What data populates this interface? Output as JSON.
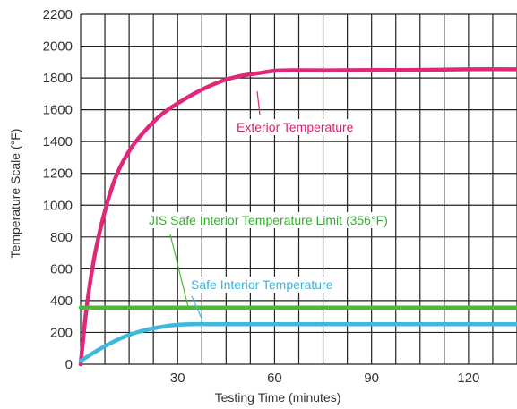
{
  "chart_data": {
    "type": "line",
    "xlabel": "Testing Time (minutes)",
    "ylabel": "Temperature Scale (°F)",
    "xlim": [
      0,
      135
    ],
    "ylim": [
      0,
      2200
    ],
    "x_ticks": [
      30,
      60,
      90,
      120
    ],
    "x_tick_labels": [
      "30",
      "60",
      "90",
      "120"
    ],
    "y_ticks": [
      0,
      200,
      400,
      600,
      800,
      1000,
      1200,
      1400,
      1600,
      1800,
      2000,
      2200
    ],
    "y_tick_labels": [
      "0",
      "200",
      "400",
      "600",
      "800",
      "1000",
      "1200",
      "1400",
      "1600",
      "1800",
      "2000",
      "2200"
    ],
    "grid": true,
    "series": [
      {
        "name": "Exterior Temperature",
        "color": "#e0287a",
        "x": [
          0,
          2,
          5,
          10,
          15,
          20,
          25,
          30,
          35,
          40,
          45,
          50,
          55,
          60,
          65,
          70,
          80,
          90,
          100,
          110,
          120,
          135
        ],
        "y": [
          0,
          380,
          750,
          1130,
          1340,
          1470,
          1570,
          1640,
          1700,
          1750,
          1790,
          1815,
          1830,
          1845,
          1848,
          1848,
          1848,
          1850,
          1850,
          1852,
          1855,
          1855
        ]
      },
      {
        "name": "JIS Safe Interior Temperature Limit (356°F)",
        "color": "#4cb836",
        "x": [
          0,
          135
        ],
        "y": [
          356,
          356
        ]
      },
      {
        "name": "Safe Interior Temperature",
        "color": "#3db9de",
        "x": [
          0,
          5,
          10,
          15,
          20,
          25,
          30,
          35,
          40,
          50,
          60,
          70,
          90,
          110,
          135
        ],
        "y": [
          20,
          85,
          140,
          185,
          215,
          235,
          248,
          252,
          252,
          252,
          252,
          252,
          252,
          252,
          252
        ]
      }
    ],
    "annotations": [
      {
        "text": "Exterior Temperature",
        "series": 0
      },
      {
        "text": "JIS Safe Interior Temperature Limit (356°F)",
        "series": 1
      },
      {
        "text": "Safe Interior Temperature",
        "series": 2
      }
    ]
  }
}
